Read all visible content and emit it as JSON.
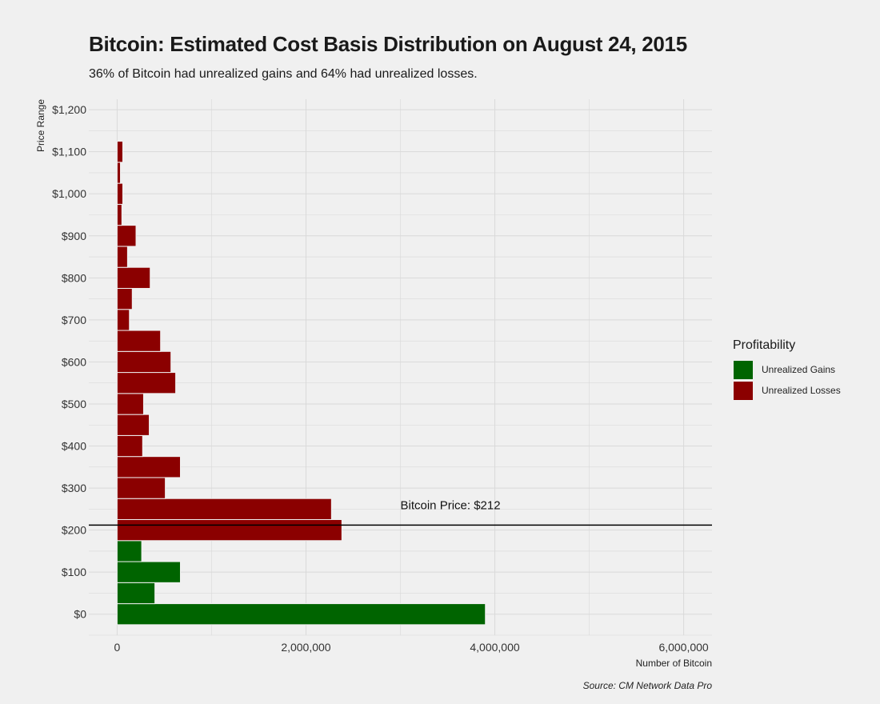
{
  "chart_data": {
    "type": "bar",
    "orientation": "horizontal",
    "title": "Bitcoin: Estimated Cost Basis Distribution on August 24, 2015",
    "subtitle": "36% of Bitcoin had unrealized gains and 64% had unrealized losses.",
    "xlabel": "Number of Bitcoin",
    "ylabel": "Price Range",
    "source": "Source: CM Network Data Pro",
    "xlim": [
      -300000,
      6300000
    ],
    "ylim": [
      -50,
      1225
    ],
    "x_ticks": [
      0,
      2000000,
      4000000,
      6000000
    ],
    "x_tick_labels": [
      "0",
      "2,000,000",
      "4,000,000",
      "6,000,000"
    ],
    "y_ticks": [
      0,
      100,
      200,
      300,
      400,
      500,
      600,
      700,
      800,
      900,
      1000,
      1100,
      1200
    ],
    "y_tick_labels": [
      "$0",
      "$100",
      "$200",
      "$300",
      "$400",
      "$500",
      "$600",
      "$700",
      "$800",
      "$900",
      "$1,000",
      "$1,100",
      "$1,200"
    ],
    "grid": true,
    "bin_width": 50,
    "bars": [
      {
        "price": 0,
        "value": 3900000,
        "group": "Unrealized Gains"
      },
      {
        "price": 50,
        "value": 400000,
        "group": "Unrealized Gains"
      },
      {
        "price": 100,
        "value": 670000,
        "group": "Unrealized Gains"
      },
      {
        "price": 150,
        "value": 260000,
        "group": "Unrealized Gains"
      },
      {
        "price": 200,
        "value": 2380000,
        "group": "Unrealized Losses"
      },
      {
        "price": 250,
        "value": 2270000,
        "group": "Unrealized Losses"
      },
      {
        "price": 300,
        "value": 510000,
        "group": "Unrealized Losses"
      },
      {
        "price": 350,
        "value": 670000,
        "group": "Unrealized Losses"
      },
      {
        "price": 400,
        "value": 270000,
        "group": "Unrealized Losses"
      },
      {
        "price": 450,
        "value": 340000,
        "group": "Unrealized Losses"
      },
      {
        "price": 500,
        "value": 280000,
        "group": "Unrealized Losses"
      },
      {
        "price": 550,
        "value": 620000,
        "group": "Unrealized Losses"
      },
      {
        "price": 600,
        "value": 570000,
        "group": "Unrealized Losses"
      },
      {
        "price": 650,
        "value": 460000,
        "group": "Unrealized Losses"
      },
      {
        "price": 700,
        "value": 130000,
        "group": "Unrealized Losses"
      },
      {
        "price": 750,
        "value": 160000,
        "group": "Unrealized Losses"
      },
      {
        "price": 800,
        "value": 350000,
        "group": "Unrealized Losses"
      },
      {
        "price": 850,
        "value": 110000,
        "group": "Unrealized Losses"
      },
      {
        "price": 900,
        "value": 200000,
        "group": "Unrealized Losses"
      },
      {
        "price": 950,
        "value": 50000,
        "group": "Unrealized Losses"
      },
      {
        "price": 1000,
        "value": 60000,
        "group": "Unrealized Losses"
      },
      {
        "price": 1050,
        "value": 35000,
        "group": "Unrealized Losses"
      },
      {
        "price": 1100,
        "value": 60000,
        "group": "Unrealized Losses"
      }
    ],
    "reference_line": {
      "y": 212,
      "label": "Bitcoin Price: $212",
      "label_x": 3000000
    },
    "legend": {
      "title": "Profitability",
      "position": "right",
      "items": [
        {
          "label": "Unrealized Gains",
          "color": "#006400"
        },
        {
          "label": "Unrealized Losses",
          "color": "#8b0000"
        }
      ]
    },
    "colors": {
      "Unrealized Gains": "#006400",
      "Unrealized Losses": "#8b0000",
      "grid": "#d9d9d9",
      "reference_line": "#000000"
    }
  }
}
